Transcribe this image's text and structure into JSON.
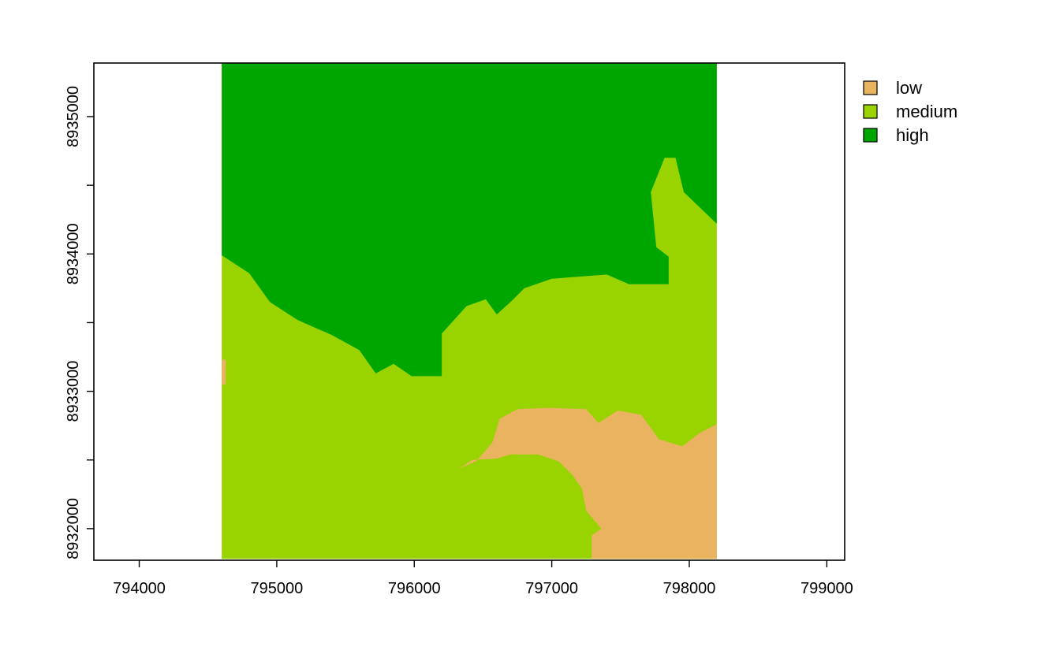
{
  "chart_data": {
    "type": "heatmap",
    "title": "",
    "xlabel": "",
    "ylabel": "",
    "xlim": [
      793670,
      799130
    ],
    "ylim": [
      8931770,
      8935390
    ],
    "x_ticks": [
      {
        "value": 794000,
        "label": "794000"
      },
      {
        "value": 795000,
        "label": "795000"
      },
      {
        "value": 796000,
        "label": "796000"
      },
      {
        "value": 797000,
        "label": "797000"
      },
      {
        "value": 798000,
        "label": "798000"
      },
      {
        "value": 799000,
        "label": "799000"
      }
    ],
    "y_ticks": [
      {
        "value": 8932000,
        "label": "8932000"
      },
      {
        "value": 8932500,
        "label": ""
      },
      {
        "value": 8933000,
        "label": "8933000"
      },
      {
        "value": 8933500,
        "label": ""
      },
      {
        "value": 8934000,
        "label": "8934000"
      },
      {
        "value": 8934500,
        "label": ""
      },
      {
        "value": 8935000,
        "label": "8935000"
      }
    ],
    "raster_extent": {
      "xmin": 794600,
      "xmax": 798200,
      "ymin": 8931780,
      "ymax": 8935390
    },
    "legend_position": "top-right",
    "classes": [
      {
        "name": "low",
        "color": "#E9B35F"
      },
      {
        "name": "medium",
        "color": "#99D300"
      },
      {
        "name": "high",
        "color": "#00A600"
      }
    ],
    "regions": [
      {
        "class": "high",
        "polygon": [
          [
            794600,
            8935390
          ],
          [
            798200,
            8935390
          ],
          [
            798200,
            8934220
          ],
          [
            797960,
            8934450
          ],
          [
            797900,
            8934700
          ],
          [
            797820,
            8934700
          ],
          [
            797720,
            8934450
          ],
          [
            797760,
            8934050
          ],
          [
            797850,
            8933980
          ],
          [
            797850,
            8933780
          ],
          [
            797560,
            8933780
          ],
          [
            797400,
            8933850
          ],
          [
            797000,
            8933820
          ],
          [
            796800,
            8933750
          ],
          [
            796700,
            8933650
          ],
          [
            796600,
            8933560
          ],
          [
            796520,
            8933670
          ],
          [
            796380,
            8933620
          ],
          [
            796200,
            8933420
          ],
          [
            796200,
            8933110
          ],
          [
            795980,
            8933110
          ],
          [
            795850,
            8933200
          ],
          [
            795720,
            8933130
          ],
          [
            795600,
            8933300
          ],
          [
            795400,
            8933410
          ],
          [
            795150,
            8933520
          ],
          [
            794950,
            8933650
          ],
          [
            794800,
            8933860
          ],
          [
            794600,
            8933990
          ]
        ]
      },
      {
        "class": "low",
        "polygon": [
          [
            796330,
            8932440
          ],
          [
            796420,
            8932500
          ],
          [
            796600,
            8932510
          ],
          [
            796700,
            8932540
          ],
          [
            796900,
            8932540
          ],
          [
            797050,
            8932490
          ],
          [
            797150,
            8932390
          ],
          [
            797220,
            8932290
          ],
          [
            797250,
            8932130
          ],
          [
            797360,
            8932000
          ],
          [
            797290,
            8931950
          ],
          [
            797290,
            8931780
          ],
          [
            798200,
            8931780
          ],
          [
            798200,
            8932760
          ],
          [
            798080,
            8932700
          ],
          [
            797950,
            8932600
          ],
          [
            797780,
            8932650
          ],
          [
            797650,
            8932830
          ],
          [
            797480,
            8932860
          ],
          [
            797340,
            8932770
          ],
          [
            797250,
            8932870
          ],
          [
            796980,
            8932880
          ],
          [
            796750,
            8932870
          ],
          [
            796620,
            8932800
          ],
          [
            796570,
            8932630
          ],
          [
            796450,
            8932490
          ]
        ]
      },
      {
        "class": "low",
        "polygon": [
          [
            794600,
            8933230
          ],
          [
            794630,
            8933230
          ],
          [
            794630,
            8933050
          ],
          [
            794600,
            8933050
          ]
        ]
      }
    ]
  }
}
